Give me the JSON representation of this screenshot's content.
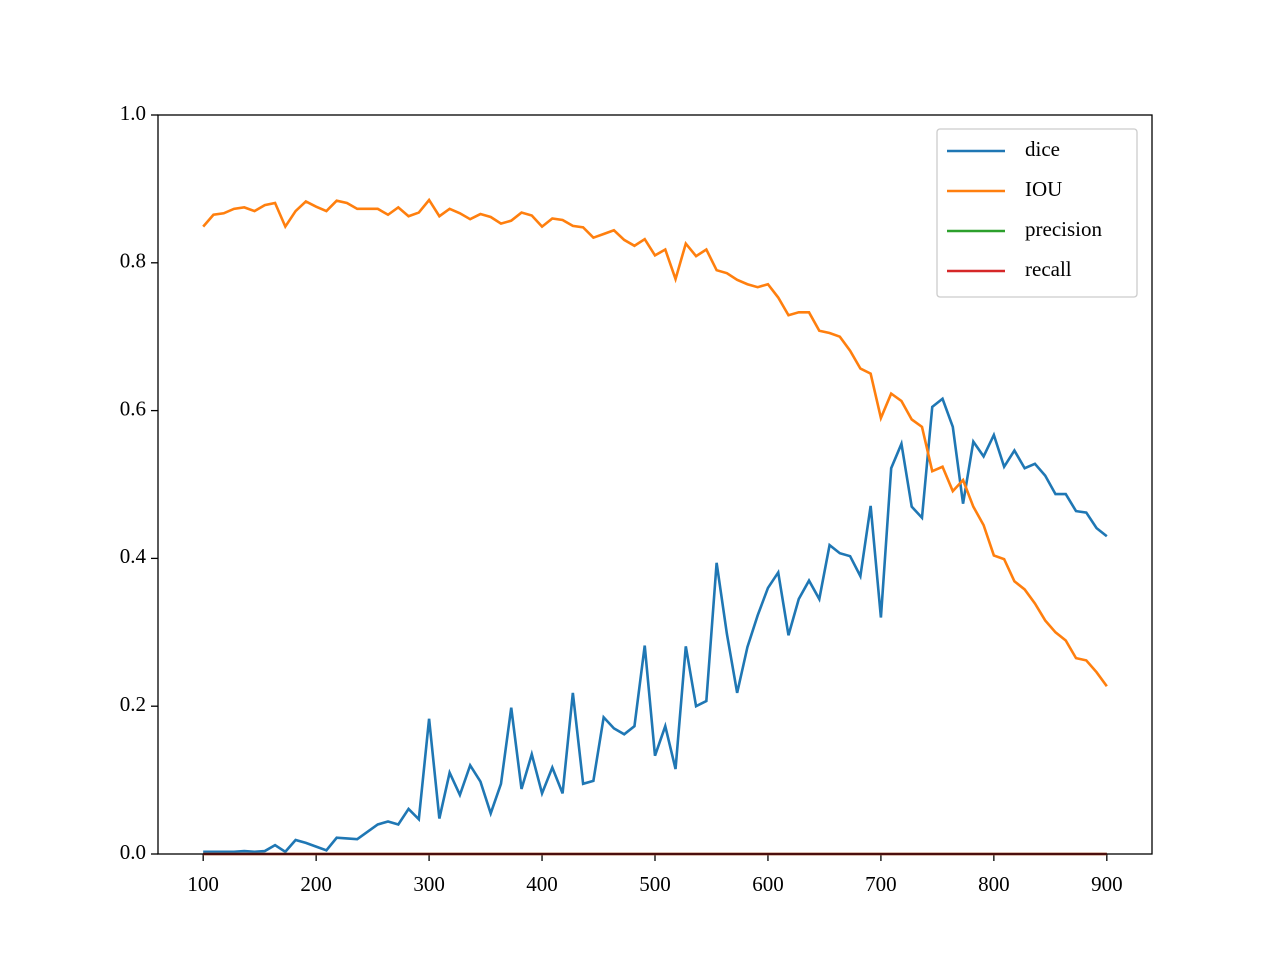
{
  "chart_data": {
    "type": "line",
    "x": [
      100,
      109.09,
      118.18,
      127.27,
      136.36,
      145.45,
      154.55,
      163.64,
      172.73,
      181.82,
      190.91,
      200,
      209.09,
      218.18,
      227.27,
      236.36,
      245.45,
      254.55,
      263.64,
      272.73,
      281.82,
      290.91,
      300,
      309.09,
      318.18,
      327.27,
      336.36,
      345.45,
      354.55,
      363.64,
      372.73,
      381.82,
      390.91,
      400,
      409.09,
      418.18,
      427.27,
      436.36,
      445.45,
      454.55,
      463.64,
      472.73,
      481.82,
      490.91,
      500,
      509.09,
      518.18,
      527.27,
      536.36,
      545.45,
      554.55,
      563.64,
      572.73,
      581.82,
      590.91,
      600,
      609.09,
      618.18,
      627.27,
      636.36,
      645.45,
      654.55,
      663.64,
      672.73,
      681.82,
      690.91,
      700,
      709.09,
      718.18,
      727.27,
      736.36,
      745.45,
      754.55,
      763.64,
      772.73,
      781.82,
      790.91,
      800,
      809.09,
      818.18,
      827.27,
      836.36,
      845.45,
      854.55,
      863.64,
      872.73,
      881.82,
      890.91,
      900
    ],
    "series": [
      {
        "name": "dice",
        "color": "#1f77b4",
        "values": [
          0.003,
          0.003,
          0.003,
          0.003,
          0.004,
          0.003,
          0.004,
          0.012,
          0.003,
          0.019,
          0.015,
          0.01,
          0.005,
          0.022,
          0.021,
          0.02,
          0.03,
          0.04,
          0.044,
          0.04,
          0.061,
          0.047,
          0.183,
          0.048,
          0.11,
          0.08,
          0.12,
          0.098,
          0.055,
          0.095,
          0.198,
          0.088,
          0.135,
          0.082,
          0.117,
          0.082,
          0.218,
          0.095,
          0.099,
          0.185,
          0.17,
          0.162,
          0.173,
          0.282,
          0.133,
          0.173,
          0.115,
          0.281,
          0.2,
          0.207,
          0.394,
          0.298,
          0.218,
          0.28,
          0.323,
          0.36,
          0.381,
          0.296,
          0.345,
          0.37,
          0.345,
          0.418,
          0.407,
          0.403,
          0.376,
          0.471,
          0.32,
          0.522,
          0.555,
          0.47,
          0.455,
          0.605,
          0.616,
          0.578,
          0.474,
          0.558,
          0.538,
          0.567,
          0.524,
          0.546,
          0.522,
          0.528,
          0.512,
          0.487,
          0.487,
          0.464,
          0.462,
          0.441,
          0.43
        ]
      },
      {
        "name": "IOU",
        "color": "#ff7f0e",
        "values": [
          0.849,
          0.865,
          0.867,
          0.873,
          0.875,
          0.87,
          0.878,
          0.881,
          0.849,
          0.87,
          0.883,
          0.876,
          0.87,
          0.884,
          0.881,
          0.873,
          0.873,
          0.873,
          0.865,
          0.875,
          0.863,
          0.868,
          0.885,
          0.863,
          0.873,
          0.867,
          0.859,
          0.866,
          0.862,
          0.853,
          0.857,
          0.868,
          0.864,
          0.849,
          0.86,
          0.858,
          0.85,
          0.848,
          0.834,
          0.839,
          0.844,
          0.831,
          0.823,
          0.832,
          0.81,
          0.818,
          0.778,
          0.826,
          0.809,
          0.818,
          0.79,
          0.786,
          0.777,
          0.771,
          0.767,
          0.771,
          0.753,
          0.729,
          0.733,
          0.733,
          0.708,
          0.705,
          0.7,
          0.681,
          0.657,
          0.65,
          0.59,
          0.623,
          0.613,
          0.588,
          0.578,
          0.518,
          0.524,
          0.491,
          0.506,
          0.47,
          0.445,
          0.404,
          0.399,
          0.369,
          0.358,
          0.339,
          0.316,
          0.3,
          0.289,
          0.265,
          0.262,
          0.246,
          0.227
        ]
      },
      {
        "name": "precision",
        "color": "#2ca02c",
        "values": [
          0,
          0,
          0,
          0,
          0,
          0,
          0,
          0,
          0,
          0,
          0,
          0,
          0,
          0,
          0,
          0,
          0,
          0,
          0,
          0,
          0,
          0,
          0,
          0,
          0,
          0,
          0,
          0,
          0,
          0,
          0,
          0,
          0,
          0,
          0,
          0,
          0,
          0,
          0,
          0,
          0,
          0,
          0,
          0,
          0,
          0,
          0,
          0,
          0,
          0,
          0,
          0,
          0,
          0,
          0,
          0,
          0,
          0,
          0,
          0,
          0,
          0,
          0,
          0,
          0,
          0,
          0,
          0,
          0,
          0,
          0,
          0,
          0,
          0,
          0,
          0,
          0,
          0,
          0,
          0,
          0,
          0,
          0,
          0,
          0,
          0,
          0,
          0,
          0
        ]
      },
      {
        "name": "recall",
        "color": "#d62728",
        "values": [
          0,
          0,
          0,
          0,
          0,
          0,
          0,
          0,
          0,
          0,
          0,
          0,
          0,
          0,
          0,
          0,
          0,
          0,
          0,
          0,
          0,
          0,
          0,
          0,
          0,
          0,
          0,
          0,
          0,
          0,
          0,
          0,
          0,
          0,
          0,
          0,
          0,
          0,
          0,
          0,
          0,
          0,
          0,
          0,
          0,
          0,
          0,
          0,
          0,
          0,
          0,
          0,
          0,
          0,
          0,
          0,
          0,
          0,
          0,
          0,
          0,
          0,
          0,
          0,
          0,
          0,
          0,
          0,
          0,
          0,
          0,
          0,
          0,
          0,
          0,
          0,
          0,
          0,
          0,
          0,
          0,
          0,
          0,
          0,
          0,
          0,
          0,
          0,
          0
        ]
      }
    ],
    "xlim": [
      60,
      940
    ],
    "ylim": [
      0,
      1
    ],
    "xticks": [
      100,
      200,
      300,
      400,
      500,
      600,
      700,
      800,
      900
    ],
    "yticks": [
      {
        "value": 0,
        "label": "0.0"
      },
      {
        "value": 0.2,
        "label": "0.2"
      },
      {
        "value": 0.4,
        "label": "0.4"
      },
      {
        "value": 0.6,
        "label": "0.6"
      },
      {
        "value": 0.8,
        "label": "0.8"
      },
      {
        "value": 1,
        "label": "1.0"
      }
    ],
    "legend": "upper right"
  }
}
